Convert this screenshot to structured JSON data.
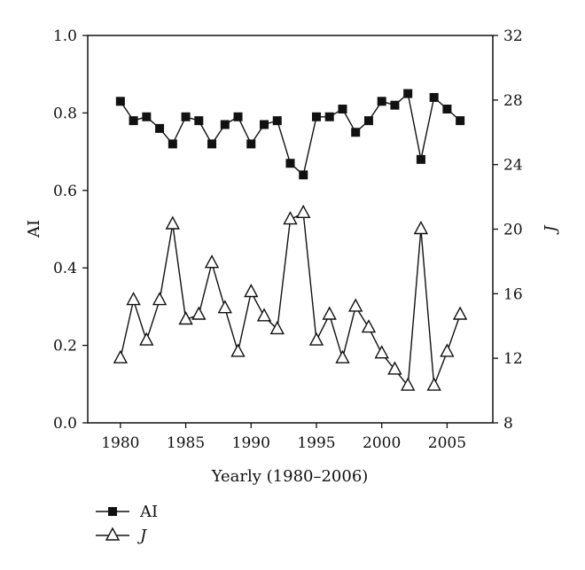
{
  "chart_data": {
    "type": "line",
    "title": "",
    "xlabel": "Yearly (1980–2006)",
    "ylabel_left": "AI",
    "ylabel_right": "J",
    "x_range": [
      1977.5,
      2008.5
    ],
    "x_ticks": [
      1980,
      1985,
      1990,
      1995,
      2000,
      2005
    ],
    "y_left_range": [
      0.0,
      1.0
    ],
    "y_left_ticks": [
      "0.0",
      "0.2",
      "0.4",
      "0.6",
      "0.8",
      "1.0"
    ],
    "y_right_range": [
      8,
      32
    ],
    "y_right_ticks": [
      "8",
      "12",
      "16",
      "20",
      "24",
      "28",
      "32"
    ],
    "grid": false,
    "legend_position": "bottom-left",
    "x": [
      1980,
      1981,
      1982,
      1983,
      1984,
      1985,
      1986,
      1987,
      1988,
      1989,
      1990,
      1991,
      1992,
      1993,
      1994,
      1995,
      1996,
      1997,
      1998,
      1999,
      2000,
      2001,
      2002,
      2003,
      2004,
      2005,
      2006
    ],
    "series": [
      {
        "name": "AI",
        "axis": "left",
        "marker": "filled-square",
        "color": "#111111",
        "values": [
          0.83,
          0.78,
          0.79,
          0.76,
          0.72,
          0.79,
          0.78,
          0.72,
          0.77,
          0.79,
          0.72,
          0.77,
          0.78,
          0.67,
          0.64,
          0.79,
          0.79,
          0.81,
          0.75,
          0.78,
          0.83,
          0.82,
          0.85,
          0.68,
          0.84,
          0.81,
          0.78
        ]
      },
      {
        "name": "J",
        "axis": "right",
        "marker": "open-triangle",
        "color": "#111111",
        "values": [
          12.0,
          15.6,
          13.1,
          15.6,
          20.3,
          14.4,
          14.7,
          17.9,
          15.1,
          12.4,
          16.1,
          14.6,
          13.8,
          20.6,
          21.0,
          13.1,
          14.7,
          12.0,
          15.2,
          13.9,
          12.3,
          11.3,
          10.3,
          20.0,
          10.3,
          12.4,
          14.7
        ]
      }
    ]
  }
}
